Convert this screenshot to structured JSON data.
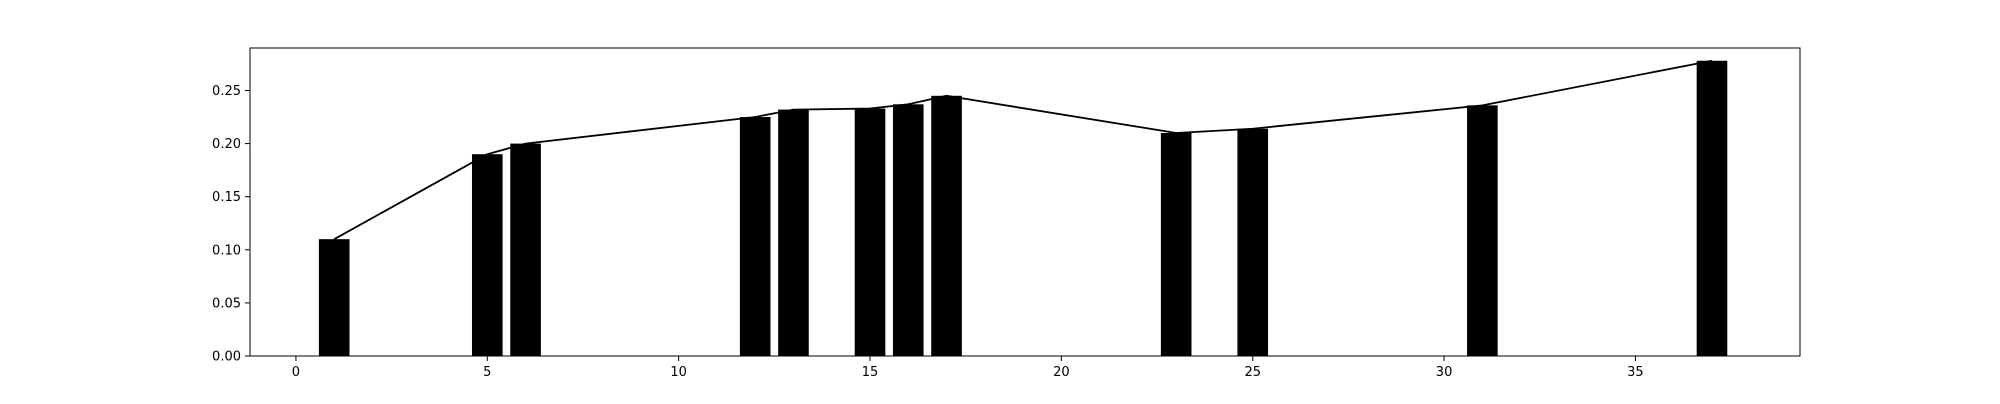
{
  "chart_data": {
    "type": "bar",
    "title": "",
    "xlabel": "",
    "ylabel": "",
    "xlim": [
      -1.2,
      39.3
    ],
    "ylim": [
      0,
      0.29
    ],
    "x_ticks": [
      0,
      5,
      10,
      15,
      20,
      25,
      30,
      35
    ],
    "y_ticks": [
      0.0,
      0.05,
      0.1,
      0.15,
      0.2,
      0.25
    ],
    "grid": false,
    "bar_color": "#000000",
    "line_color": "#000000",
    "series": [
      {
        "type": "bar",
        "x": [
          1,
          5,
          6,
          12,
          13,
          15,
          16,
          17,
          23,
          25,
          31,
          37
        ],
        "values": [
          0.11,
          0.19,
          0.2,
          0.225,
          0.232,
          0.233,
          0.237,
          0.245,
          0.21,
          0.214,
          0.236,
          0.278
        ]
      },
      {
        "type": "line",
        "x": [
          1,
          5,
          6,
          12,
          13,
          15,
          16,
          17,
          23,
          25,
          31,
          37
        ],
        "values": [
          0.11,
          0.19,
          0.2,
          0.225,
          0.232,
          0.233,
          0.237,
          0.245,
          0.21,
          0.214,
          0.236,
          0.278
        ]
      }
    ]
  }
}
